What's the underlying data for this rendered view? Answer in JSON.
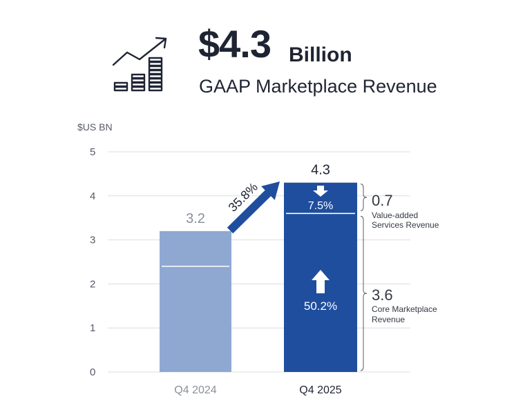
{
  "headline": {
    "value": "$4.3",
    "unit": "Billion",
    "subtitle": "GAAP Marketplace Revenue",
    "icon": "growth-chart-icon"
  },
  "chart_data": {
    "type": "bar",
    "ylabel": "$US BN",
    "ylim": [
      0,
      5
    ],
    "yticks": [
      0,
      1,
      2,
      3,
      4,
      5
    ],
    "categories": [
      "Q4 2024",
      "Q4 2025"
    ],
    "values": [
      3.2,
      4.3
    ],
    "value_labels": [
      "3.2",
      "4.3"
    ],
    "segment_split": [
      2.4,
      3.6
    ],
    "growth_arrow_label": "35.8%",
    "value_added": {
      "pct_label": "7.5%",
      "amount": "0.7",
      "label_line1": "Value-added",
      "label_line2": "Services Revenue"
    },
    "core": {
      "pct_label": "50.2%",
      "amount": "3.6",
      "label_line1": "Core Marketplace",
      "label_line2": "Revenue"
    },
    "colors": {
      "bar_prev": "#8fa8d1",
      "bar_curr": "#1f4e9e",
      "arrow": "#1f4e9e",
      "grid": "#d9dce2",
      "cat_prev": "#8a8f99",
      "cat_curr": "#1f2433",
      "val_prev": "#8a8f99",
      "val_curr": "#1f2433"
    }
  }
}
